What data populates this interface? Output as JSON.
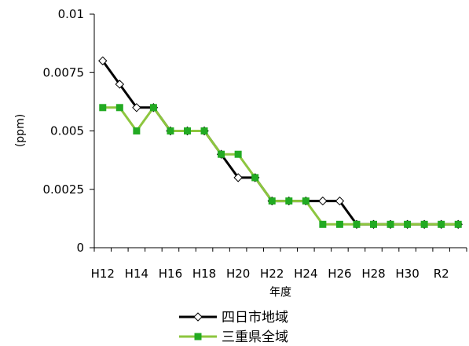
{
  "chart_data": {
    "type": "line",
    "title": "",
    "xlabel": "年度",
    "ylabel": "(ppm)",
    "ylim": [
      0,
      0.01
    ],
    "yticks": [
      0,
      0.0025,
      0.005,
      0.0075,
      0.01
    ],
    "ytick_labels": [
      "0",
      "0.0025",
      "0.005",
      "0.0075",
      "0.01"
    ],
    "x": [
      "H12",
      "H13",
      "H14",
      "H15",
      "H16",
      "H17",
      "H18",
      "H19",
      "H20",
      "H21",
      "H22",
      "H23",
      "H24",
      "H25",
      "H26",
      "H27",
      "H28",
      "H29",
      "H30",
      "R1",
      "R2",
      "R3"
    ],
    "xtick_labels": [
      "H12",
      "",
      "H14",
      "",
      "H16",
      "",
      "H18",
      "",
      "H20",
      "",
      "H22",
      "",
      "H24",
      "",
      "H26",
      "",
      "H28",
      "",
      "H30",
      "",
      "R2",
      ""
    ],
    "grid": false,
    "legend": "bottom",
    "series": [
      {
        "name": "四日市地域",
        "color": "#000000",
        "marker": "diamond-open",
        "values": [
          0.008,
          0.007,
          0.006,
          0.006,
          0.005,
          0.005,
          0.005,
          0.004,
          0.003,
          0.003,
          0.002,
          0.002,
          0.002,
          0.002,
          0.002,
          0.001,
          0.001,
          0.001,
          0.001,
          0.001,
          0.001,
          0.001
        ]
      },
      {
        "name": "三重県全域",
        "color": "#8DC63F",
        "marker_color": "#22AA22",
        "marker": "square-filled",
        "values": [
          0.006,
          0.006,
          0.005,
          0.006,
          0.005,
          0.005,
          0.005,
          0.004,
          0.004,
          0.003,
          0.002,
          0.002,
          0.002,
          0.001,
          0.001,
          0.001,
          0.001,
          0.001,
          0.001,
          0.001,
          0.001,
          0.001
        ]
      }
    ]
  }
}
